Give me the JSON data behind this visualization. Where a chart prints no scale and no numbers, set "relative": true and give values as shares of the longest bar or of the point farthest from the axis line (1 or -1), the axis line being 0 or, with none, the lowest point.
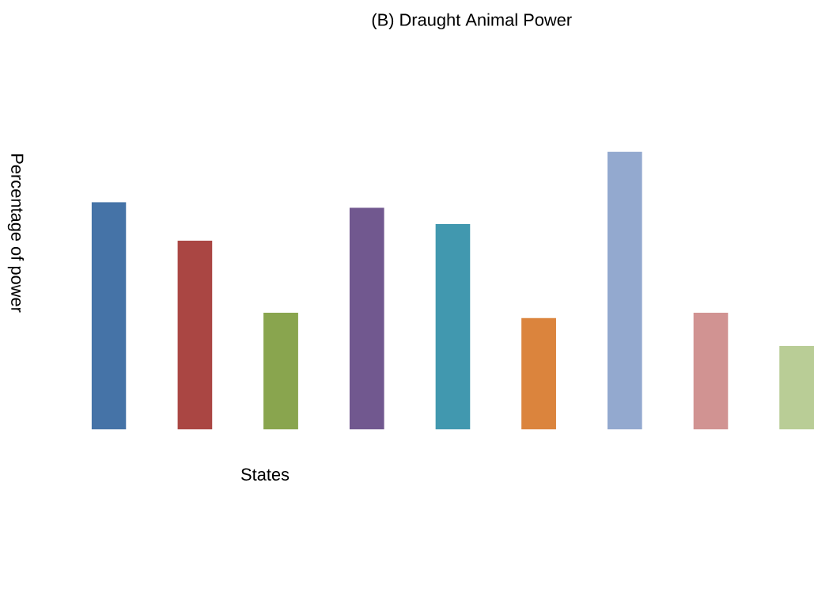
{
  "chart_data": {
    "type": "bar",
    "title": "(B) Draught Animal Power",
    "xlabel": "States",
    "ylabel": "Percentage of power",
    "relative": true,
    "categories": [
      null,
      null,
      null,
      null,
      null,
      null,
      null,
      null,
      null
    ],
    "values": [
      0.818,
      0.679,
      0.42,
      0.798,
      0.739,
      0.401,
      1,
      0.42,
      0.301
    ],
    "colors": [
      "#4573a7",
      "#aa4643",
      "#89a54e",
      "#71588f",
      "#4198af",
      "#db843d",
      "#93a9cf",
      "#d19392",
      "#b9cd96"
    ]
  }
}
